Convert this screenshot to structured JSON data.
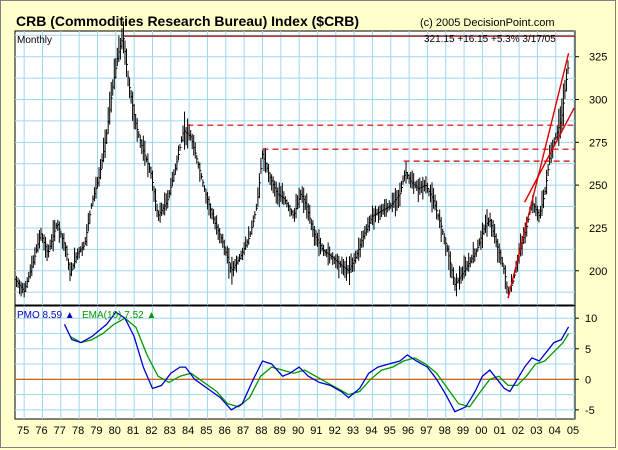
{
  "header": {
    "title": "CRB (Commodities Research Bureau) Index ($CRB)",
    "copyright": "(c) 2005 DecisionPoint.com",
    "period": "Monthly",
    "last_value": "321.15",
    "change": "+16.15",
    "change_pct": "+5.3%",
    "date": "3/17/05"
  },
  "colors": {
    "background": "#ffffcc",
    "panel": "#ffffff",
    "grid": "#9fd8f0",
    "price_bars": "#000000",
    "resistance_solid": "#990000",
    "resistance_dashed": "#cc0000",
    "channel": "#dd0000",
    "pmo": "#0000cc",
    "ema": "#009900",
    "zero_line": "#cc5500"
  },
  "chart_data": [
    {
      "type": "bar",
      "title": "CRB (Commodities Research Bureau) Index ($CRB)",
      "subtitle": "Monthly",
      "x_ticks": [
        "75",
        "76",
        "77",
        "78",
        "79",
        "80",
        "81",
        "82",
        "83",
        "84",
        "85",
        "86",
        "87",
        "88",
        "89",
        "90",
        "91",
        "92",
        "93",
        "94",
        "95",
        "96",
        "97",
        "98",
        "99",
        "00",
        "01",
        "02",
        "03",
        "04",
        "05"
      ],
      "y_ticks": [
        200,
        225,
        250,
        275,
        300,
        325
      ],
      "ylim": [
        180,
        340
      ],
      "grid": true,
      "series": [
        {
          "name": "$CRB",
          "points": [
            {
              "x": 1975.0,
              "y": 195
            },
            {
              "x": 1975.5,
              "y": 188
            },
            {
              "x": 1976.0,
              "y": 205
            },
            {
              "x": 1976.4,
              "y": 222
            },
            {
              "x": 1976.8,
              "y": 210
            },
            {
              "x": 1977.3,
              "y": 228
            },
            {
              "x": 1977.8,
              "y": 212
            },
            {
              "x": 1978.0,
              "y": 198
            },
            {
              "x": 1978.4,
              "y": 210
            },
            {
              "x": 1978.8,
              "y": 215
            },
            {
              "x": 1979.2,
              "y": 240
            },
            {
              "x": 1979.6,
              "y": 255
            },
            {
              "x": 1980.0,
              "y": 280
            },
            {
              "x": 1980.3,
              "y": 305
            },
            {
              "x": 1980.6,
              "y": 325
            },
            {
              "x": 1980.9,
              "y": 337
            },
            {
              "x": 1981.2,
              "y": 310
            },
            {
              "x": 1981.6,
              "y": 285
            },
            {
              "x": 1982.0,
              "y": 270
            },
            {
              "x": 1982.4,
              "y": 258
            },
            {
              "x": 1982.8,
              "y": 232
            },
            {
              "x": 1983.3,
              "y": 240
            },
            {
              "x": 1983.8,
              "y": 262
            },
            {
              "x": 1984.2,
              "y": 282
            },
            {
              "x": 1984.6,
              "y": 278
            },
            {
              "x": 1985.0,
              "y": 262
            },
            {
              "x": 1985.4,
              "y": 245
            },
            {
              "x": 1985.9,
              "y": 228
            },
            {
              "x": 1986.3,
              "y": 218
            },
            {
              "x": 1986.8,
              "y": 200
            },
            {
              "x": 1987.3,
              "y": 208
            },
            {
              "x": 1987.8,
              "y": 220
            },
            {
              "x": 1988.2,
              "y": 238
            },
            {
              "x": 1988.5,
              "y": 268
            },
            {
              "x": 1988.9,
              "y": 255
            },
            {
              "x": 1989.3,
              "y": 245
            },
            {
              "x": 1989.7,
              "y": 242
            },
            {
              "x": 1990.2,
              "y": 232
            },
            {
              "x": 1990.6,
              "y": 245
            },
            {
              "x": 1990.9,
              "y": 238
            },
            {
              "x": 1991.3,
              "y": 222
            },
            {
              "x": 1991.8,
              "y": 212
            },
            {
              "x": 1992.3,
              "y": 208
            },
            {
              "x": 1992.8,
              "y": 203
            },
            {
              "x": 1993.2,
              "y": 200
            },
            {
              "x": 1993.6,
              "y": 208
            },
            {
              "x": 1994.0,
              "y": 220
            },
            {
              "x": 1994.5,
              "y": 232
            },
            {
              "x": 1995.0,
              "y": 235
            },
            {
              "x": 1995.5,
              "y": 238
            },
            {
              "x": 1996.0,
              "y": 245
            },
            {
              "x": 1996.3,
              "y": 258
            },
            {
              "x": 1996.6,
              "y": 252
            },
            {
              "x": 1997.0,
              "y": 248
            },
            {
              "x": 1997.4,
              "y": 250
            },
            {
              "x": 1997.8,
              "y": 242
            },
            {
              "x": 1998.2,
              "y": 228
            },
            {
              "x": 1998.6,
              "y": 212
            },
            {
              "x": 1999.0,
              "y": 192
            },
            {
              "x": 1999.4,
              "y": 198
            },
            {
              "x": 1999.8,
              "y": 205
            },
            {
              "x": 2000.2,
              "y": 212
            },
            {
              "x": 2000.6,
              "y": 225
            },
            {
              "x": 2000.9,
              "y": 230
            },
            {
              "x": 2001.3,
              "y": 215
            },
            {
              "x": 2001.7,
              "y": 200
            },
            {
              "x": 2001.9,
              "y": 186
            },
            {
              "x": 2002.2,
              "y": 195
            },
            {
              "x": 2002.5,
              "y": 210
            },
            {
              "x": 2002.9,
              "y": 225
            },
            {
              "x": 2003.2,
              "y": 240
            },
            {
              "x": 2003.6,
              "y": 232
            },
            {
              "x": 2003.9,
              "y": 245
            },
            {
              "x": 2004.2,
              "y": 268
            },
            {
              "x": 2004.5,
              "y": 278
            },
            {
              "x": 2004.8,
              "y": 288
            },
            {
              "x": 2005.0,
              "y": 305
            },
            {
              "x": 2005.2,
              "y": 321
            }
          ]
        }
      ],
      "annotations": {
        "solid_line": [
          {
            "x1": 1980.9,
            "x2": 2005.5,
            "y": 337
          }
        ],
        "dashed_lines": [
          {
            "x1": 1984.4,
            "x2": 2005.5,
            "y": 285
          },
          {
            "x1": 1988.5,
            "x2": 2005.5,
            "y": 271
          },
          {
            "x1": 1996.2,
            "x2": 2005.5,
            "y": 264
          }
        ],
        "channel": [
          {
            "x1": 2001.9,
            "y1": 184,
            "x2": 2005.2,
            "y2": 327
          },
          {
            "x1": 2002.8,
            "y1": 240,
            "x2": 2005.5,
            "y2": 295
          }
        ]
      }
    },
    {
      "type": "line",
      "legend": [
        {
          "label": "PMO",
          "value": "8.59",
          "marker": "▲"
        },
        {
          "label": "EMA(10)",
          "value": "7.52",
          "marker": "▲"
        }
      ],
      "y_ticks": [
        -5,
        0,
        5,
        10
      ],
      "ylim": [
        -6.5,
        12
      ],
      "grid": true,
      "zero_line": 0,
      "series": [
        {
          "name": "PMO",
          "points": [
            {
              "x": 1977.7,
              "y": 9
            },
            {
              "x": 1978.1,
              "y": 6.5
            },
            {
              "x": 1978.6,
              "y": 6
            },
            {
              "x": 1979.2,
              "y": 7
            },
            {
              "x": 1979.6,
              "y": 8
            },
            {
              "x": 1980.0,
              "y": 9
            },
            {
              "x": 1980.5,
              "y": 11
            },
            {
              "x": 1981.0,
              "y": 10
            },
            {
              "x": 1981.5,
              "y": 7
            },
            {
              "x": 1982.0,
              "y": 2
            },
            {
              "x": 1982.5,
              "y": -1.5
            },
            {
              "x": 1983.0,
              "y": -1
            },
            {
              "x": 1983.5,
              "y": 1
            },
            {
              "x": 1984.0,
              "y": 2
            },
            {
              "x": 1984.3,
              "y": 2
            },
            {
              "x": 1984.8,
              "y": 0
            },
            {
              "x": 1985.5,
              "y": -1.5
            },
            {
              "x": 1986.2,
              "y": -3
            },
            {
              "x": 1986.8,
              "y": -5
            },
            {
              "x": 1987.4,
              "y": -4
            },
            {
              "x": 1988.0,
              "y": 0
            },
            {
              "x": 1988.5,
              "y": 3
            },
            {
              "x": 1989.0,
              "y": 2.5
            },
            {
              "x": 1989.6,
              "y": 0.5
            },
            {
              "x": 1990.0,
              "y": 1
            },
            {
              "x": 1990.5,
              "y": 2
            },
            {
              "x": 1991.0,
              "y": 0.5
            },
            {
              "x": 1991.6,
              "y": -0.5
            },
            {
              "x": 1992.2,
              "y": -1
            },
            {
              "x": 1992.8,
              "y": -2
            },
            {
              "x": 1993.2,
              "y": -3
            },
            {
              "x": 1993.8,
              "y": -1.5
            },
            {
              "x": 1994.3,
              "y": 1
            },
            {
              "x": 1994.8,
              "y": 2
            },
            {
              "x": 1995.4,
              "y": 2.5
            },
            {
              "x": 1996.0,
              "y": 3
            },
            {
              "x": 1996.4,
              "y": 4
            },
            {
              "x": 1996.9,
              "y": 3
            },
            {
              "x": 1997.5,
              "y": 2
            },
            {
              "x": 1998.0,
              "y": 0
            },
            {
              "x": 1998.5,
              "y": -2.5
            },
            {
              "x": 1999.0,
              "y": -5.3
            },
            {
              "x": 1999.6,
              "y": -4.5
            },
            {
              "x": 2000.1,
              "y": -2
            },
            {
              "x": 2000.5,
              "y": 0.5
            },
            {
              "x": 2000.9,
              "y": 1.5
            },
            {
              "x": 2001.3,
              "y": 0
            },
            {
              "x": 2001.7,
              "y": -1.5
            },
            {
              "x": 2002.0,
              "y": -2
            },
            {
              "x": 2002.4,
              "y": 0
            },
            {
              "x": 2002.8,
              "y": 2
            },
            {
              "x": 2003.2,
              "y": 3.5
            },
            {
              "x": 2003.6,
              "y": 3
            },
            {
              "x": 2004.0,
              "y": 4.5
            },
            {
              "x": 2004.4,
              "y": 6
            },
            {
              "x": 2004.8,
              "y": 6.5
            },
            {
              "x": 2005.2,
              "y": 8.6
            }
          ]
        },
        {
          "name": "EMA(10)",
          "points": [
            {
              "x": 1978.0,
              "y": 7
            },
            {
              "x": 1978.6,
              "y": 6
            },
            {
              "x": 1979.2,
              "y": 6.5
            },
            {
              "x": 1979.8,
              "y": 7.5
            },
            {
              "x": 1980.4,
              "y": 9
            },
            {
              "x": 1981.0,
              "y": 10
            },
            {
              "x": 1981.6,
              "y": 8.5
            },
            {
              "x": 1982.2,
              "y": 4
            },
            {
              "x": 1982.8,
              "y": 0.5
            },
            {
              "x": 1983.4,
              "y": -0.5
            },
            {
              "x": 1984.0,
              "y": 0.5
            },
            {
              "x": 1984.6,
              "y": 1
            },
            {
              "x": 1985.3,
              "y": -0.5
            },
            {
              "x": 1986.0,
              "y": -2
            },
            {
              "x": 1986.6,
              "y": -4
            },
            {
              "x": 1987.2,
              "y": -4.5
            },
            {
              "x": 1987.8,
              "y": -3
            },
            {
              "x": 1988.4,
              "y": 0.5
            },
            {
              "x": 1989.0,
              "y": 2
            },
            {
              "x": 1989.6,
              "y": 1.5
            },
            {
              "x": 1990.2,
              "y": 1
            },
            {
              "x": 1990.8,
              "y": 1.5
            },
            {
              "x": 1991.4,
              "y": 0.5
            },
            {
              "x": 1992.0,
              "y": -0.5
            },
            {
              "x": 1992.6,
              "y": -1.5
            },
            {
              "x": 1993.2,
              "y": -2.5
            },
            {
              "x": 1993.8,
              "y": -2
            },
            {
              "x": 1994.4,
              "y": 0
            },
            {
              "x": 1995.0,
              "y": 1.5
            },
            {
              "x": 1995.6,
              "y": 2
            },
            {
              "x": 1996.2,
              "y": 3
            },
            {
              "x": 1996.8,
              "y": 3.5
            },
            {
              "x": 1997.4,
              "y": 2.5
            },
            {
              "x": 1998.0,
              "y": 1
            },
            {
              "x": 1998.6,
              "y": -1.5
            },
            {
              "x": 1999.2,
              "y": -4
            },
            {
              "x": 1999.8,
              "y": -4.5
            },
            {
              "x": 2000.4,
              "y": -2
            },
            {
              "x": 2000.9,
              "y": 0
            },
            {
              "x": 2001.4,
              "y": 0.5
            },
            {
              "x": 2001.9,
              "y": -1
            },
            {
              "x": 2002.4,
              "y": -1
            },
            {
              "x": 2002.9,
              "y": 0.5
            },
            {
              "x": 2003.4,
              "y": 2.5
            },
            {
              "x": 2003.9,
              "y": 3
            },
            {
              "x": 2004.4,
              "y": 4.5
            },
            {
              "x": 2004.9,
              "y": 6
            },
            {
              "x": 2005.2,
              "y": 7.5
            }
          ]
        }
      ]
    }
  ]
}
